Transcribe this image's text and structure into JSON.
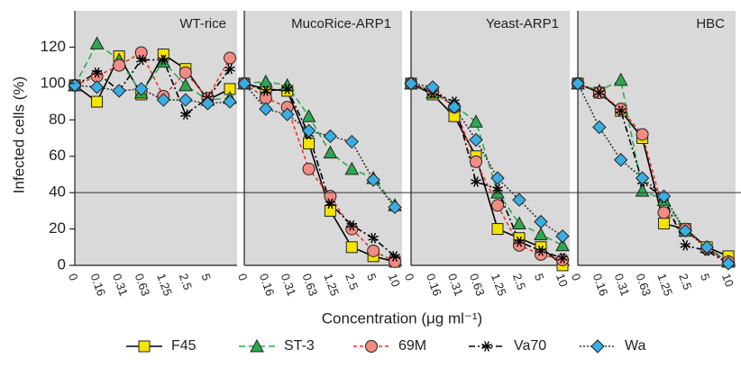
{
  "chart_data": [
    {
      "type": "line",
      "title": "WT-rice",
      "ylabel": "Infected cells (%)",
      "xlabel": "Concentration (μg ml⁻¹)",
      "categories": [
        "0",
        "0.16",
        "0.31",
        "0.63",
        "1.25",
        "2.5",
        "5",
        null
      ],
      "ylim": [
        0,
        140
      ],
      "yticks": [
        0,
        20,
        40,
        60,
        80,
        100,
        120
      ],
      "hline": 40,
      "series": [
        {
          "name": "F45",
          "color": "#f5e400",
          "line_color": "#000000",
          "dash": "none",
          "marker": "square",
          "values": [
            99,
            90,
            115,
            94,
            116,
            108,
            91,
            97
          ]
        },
        {
          "name": "ST-3",
          "color": "#2ea84f",
          "line_color": "#2ea84f",
          "dash": "7 4",
          "marker": "triangle",
          "values": [
            99,
            122,
            113,
            95,
            112,
            99,
            91,
            92
          ]
        },
        {
          "name": "69M",
          "color": "#f28b82",
          "line_color": "#e8352a",
          "dash": "4 3",
          "marker": "circle",
          "values": [
            99,
            104,
            110,
            117,
            93,
            106,
            92,
            114
          ]
        },
        {
          "name": "Va70",
          "color": "#000000",
          "line_color": "#000000",
          "dash": "7 3 2 3",
          "marker": "star",
          "values": [
            99,
            106,
            96,
            113,
            113,
            83,
            92,
            108
          ]
        },
        {
          "name": "Wa",
          "color": "#3aaee2",
          "line_color": "#333333",
          "dash": "2 2",
          "marker": "diamond",
          "values": [
            99,
            98,
            96,
            97,
            91,
            91,
            89,
            90
          ]
        }
      ]
    },
    {
      "type": "line",
      "title": "MucoRice-ARP1",
      "categories": [
        "0",
        "0.16",
        "0.31",
        "0.63",
        "1.25",
        "2.5",
        "5",
        "10"
      ],
      "ylim": [
        0,
        140
      ],
      "series": [
        {
          "values": [
            100,
            97,
            96,
            67,
            30,
            10,
            5,
            2
          ]
        },
        {
          "values": [
            100,
            101,
            99,
            82,
            62,
            53,
            48,
            33
          ]
        },
        {
          "values": [
            100,
            92,
            87,
            53,
            38,
            20,
            8,
            2
          ]
        },
        {
          "values": [
            100,
            96,
            97,
            72,
            34,
            22,
            15,
            5
          ]
        },
        {
          "values": [
            100,
            86,
            83,
            74,
            71,
            68,
            47,
            32
          ]
        }
      ]
    },
    {
      "type": "line",
      "title": "Yeast-ARP1",
      "categories": [
        "0",
        "0.16",
        "0.31",
        "0.63",
        "1.25",
        "2.5",
        "5",
        "10"
      ],
      "ylim": [
        0,
        140
      ],
      "series": [
        {
          "values": [
            100,
            94,
            82,
            60,
            20,
            15,
            10,
            0
          ]
        },
        {
          "values": [
            100,
            95,
            88,
            79,
            40,
            23,
            17,
            11
          ]
        },
        {
          "values": [
            100,
            96,
            87,
            57,
            33,
            11,
            6,
            3
          ]
        },
        {
          "values": [
            100,
            95,
            90,
            46,
            42,
            13,
            8,
            4
          ]
        },
        {
          "values": [
            100,
            98,
            87,
            69,
            48,
            36,
            24,
            16
          ]
        }
      ]
    },
    {
      "type": "line",
      "title": "HBC",
      "categories": [
        "0",
        "0.16",
        "0.31",
        "0.63",
        "1.25",
        "2.5",
        "5",
        "10"
      ],
      "ylim": [
        0,
        140
      ],
      "series": [
        {
          "values": [
            100,
            95,
            85,
            70,
            23,
            20,
            10,
            5
          ]
        },
        {
          "values": [
            100,
            96,
            102,
            41,
            36,
            19,
            10,
            2
          ]
        },
        {
          "values": [
            100,
            95,
            86,
            72,
            29,
            20,
            9,
            2
          ]
        },
        {
          "values": [
            100,
            95,
            85,
            46,
            37,
            11,
            8,
            1
          ]
        },
        {
          "values": [
            100,
            76,
            58,
            48,
            38,
            19,
            10,
            1
          ]
        }
      ]
    }
  ]
}
